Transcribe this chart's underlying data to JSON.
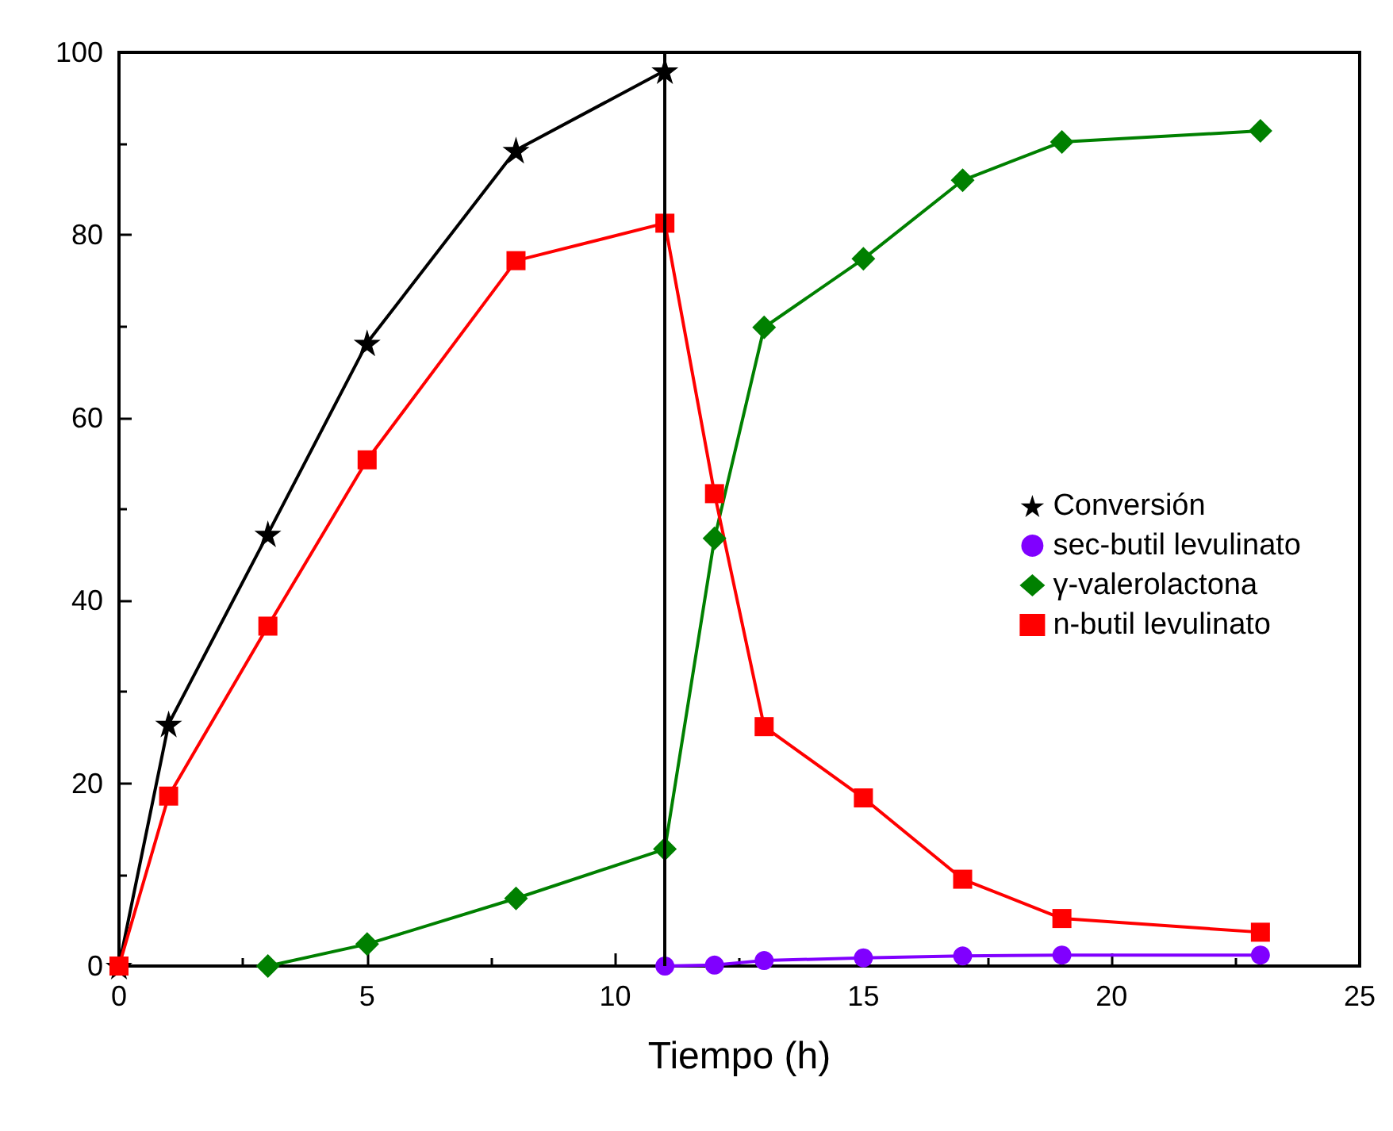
{
  "chart_data": {
    "type": "line",
    "xlabel": "Tiempo (h)",
    "xlim": [
      0,
      25
    ],
    "xticks": [
      0,
      5,
      10,
      15,
      20,
      25
    ],
    "ylim": [
      0,
      100
    ],
    "yticks": [
      0,
      20,
      40,
      60,
      80,
      100
    ],
    "grid": false,
    "legend": "right",
    "ref_lines": [
      {
        "axis": "x",
        "value": 11,
        "color": "#000000",
        "line_style": "solid"
      }
    ],
    "series": [
      {
        "name": "Conversión",
        "color": "#000000",
        "marker": "star",
        "x": [
          0,
          1,
          3,
          5,
          8,
          11
        ],
        "values": [
          0,
          26.5,
          47.3,
          68.2,
          89.3,
          98.0
        ]
      },
      {
        "name": "sec-butil levulinato",
        "color": "#8000ff",
        "marker": "circle",
        "x": [
          11,
          12,
          13,
          15,
          17,
          19,
          23
        ],
        "values": [
          0,
          0.1,
          0.6,
          0.9,
          1.1,
          1.2,
          1.2
        ]
      },
      {
        "name": "γ-valerolactona",
        "color": "#008000",
        "marker": "diamond",
        "x": [
          3,
          5,
          8,
          11,
          12,
          13,
          15,
          17,
          19,
          23
        ],
        "values": [
          0,
          2.4,
          7.4,
          12.8,
          46.8,
          69.9,
          77.4,
          86.0,
          90.2,
          91.4
        ]
      },
      {
        "name": "n-butil levulinato",
        "color": "#ff0000",
        "marker": "square",
        "x": [
          0,
          1,
          3,
          5,
          8,
          11,
          12,
          13,
          15,
          17,
          19,
          23
        ],
        "values": [
          0,
          18.6,
          37.2,
          55.4,
          77.2,
          81.3,
          51.7,
          26.2,
          18.4,
          9.5,
          5.2,
          3.7
        ]
      }
    ]
  }
}
